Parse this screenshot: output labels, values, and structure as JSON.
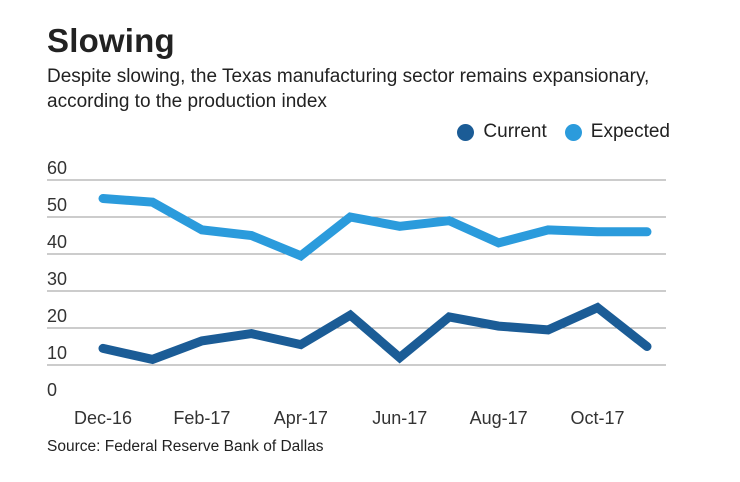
{
  "header": {
    "title": "Slowing",
    "subtitle": "Despite slowing, the Texas manufacturing sector remains expansionary, according to the production index"
  },
  "source": "Source: Federal Reserve Bank of Dallas",
  "chart_data": {
    "type": "line",
    "title": "Slowing",
    "xlabel": "",
    "ylabel": "",
    "ylim": [
      0,
      60
    ],
    "yticks": [
      0,
      10,
      20,
      30,
      40,
      50,
      60
    ],
    "grid": true,
    "legend_position": "top-right",
    "x": [
      "Dec-16",
      "Jan-17",
      "Feb-17",
      "Mar-17",
      "Apr-17",
      "May-17",
      "Jun-17",
      "Jul-17",
      "Aug-17",
      "Sep-17",
      "Oct-17",
      "Nov-17"
    ],
    "xtick_labels": [
      "Dec-16",
      "Feb-17",
      "Apr-17",
      "Jun-17",
      "Aug-17",
      "Oct-17"
    ],
    "xtick_indices": [
      0,
      2,
      4,
      6,
      8,
      10
    ],
    "series": [
      {
        "name": "Current",
        "color": "#1b5c96",
        "values": [
          14.5,
          11.5,
          16.5,
          18.5,
          15.5,
          23.5,
          12,
          23,
          20.5,
          19.5,
          25.5,
          15
        ]
      },
      {
        "name": "Expected",
        "color": "#2b9bdc",
        "values": [
          55,
          54,
          46.5,
          45,
          39.5,
          50,
          47.5,
          49,
          43,
          46.5,
          46,
          46
        ]
      }
    ]
  }
}
